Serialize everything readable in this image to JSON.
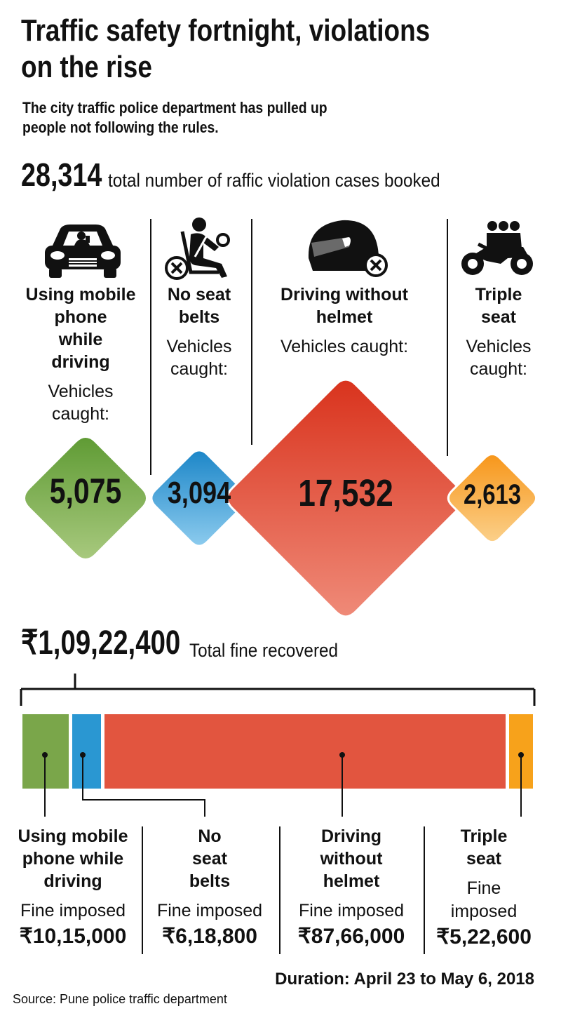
{
  "title": [
    "Traffic safety fortnight, violations",
    "on the rise"
  ],
  "subtitle": [
    "The city traffic police department has pulled up",
    "people not following the rules."
  ],
  "total_cases": {
    "value": "28,314",
    "label": "total number of raffic violation cases booked"
  },
  "categories": [
    {
      "name": [
        "Using mobile",
        "phone",
        "while",
        "driving"
      ],
      "sub": [
        "Vehicles",
        "caught:"
      ],
      "value": "5,075",
      "icon": "car-mobile-icon"
    },
    {
      "name": [
        "No seat",
        "belts"
      ],
      "sub": [
        "Vehicles",
        "caught:"
      ],
      "value": "3,094",
      "icon": "seatbelt-icon"
    },
    {
      "name": [
        "Driving without",
        "helmet"
      ],
      "sub": [
        "Vehicles caught:"
      ],
      "value": "17,532",
      "icon": "helmet-icon"
    },
    {
      "name": [
        "Triple",
        "seat"
      ],
      "sub": [
        "Vehicles",
        "caught:"
      ],
      "value": "2,613",
      "icon": "motorcycle-icon"
    }
  ],
  "fine_total": {
    "value": "₹1,09,22,400",
    "label": "Total fine recovered"
  },
  "fines": [
    {
      "name": [
        "Using mobile",
        "phone while",
        "driving"
      ],
      "label": [
        "Fine imposed"
      ],
      "amount": "₹10,15,000"
    },
    {
      "name": [
        "No",
        "seat",
        "belts"
      ],
      "label": [
        "Fine imposed"
      ],
      "amount": "₹6,18,800"
    },
    {
      "name": [
        "Driving",
        "without",
        "helmet"
      ],
      "label": [
        "Fine imposed"
      ],
      "amount": "₹87,66,000"
    },
    {
      "name": [
        "Triple",
        "seat"
      ],
      "label": [
        "Fine",
        "imposed"
      ],
      "amount": "₹5,22,600"
    }
  ],
  "duration": "Duration: April 23 to May 6, 2018",
  "source": "Source: Pune police traffic department",
  "colors": {
    "green": "#7aa64a",
    "blue": "#2a97d2",
    "red": "#e2553f",
    "orange": "#f7a21b"
  },
  "chart_data": [
    {
      "type": "bar",
      "categories": [
        "Using mobile phone while driving",
        "No seat belts",
        "Driving without helmet",
        "Triple seat"
      ],
      "values": [
        5075,
        3094,
        17532,
        2613
      ],
      "title": "",
      "xlabel": "",
      "ylabel": "Vehicles caught"
    },
    {
      "type": "bar",
      "categories": [
        "Using mobile phone while driving",
        "No seat belts",
        "Driving without helmet",
        "Triple seat"
      ],
      "values": [
        1015000,
        618800,
        8766000,
        522600
      ],
      "title": "",
      "xlabel": "",
      "ylabel": "Fine imposed (₹)"
    }
  ]
}
